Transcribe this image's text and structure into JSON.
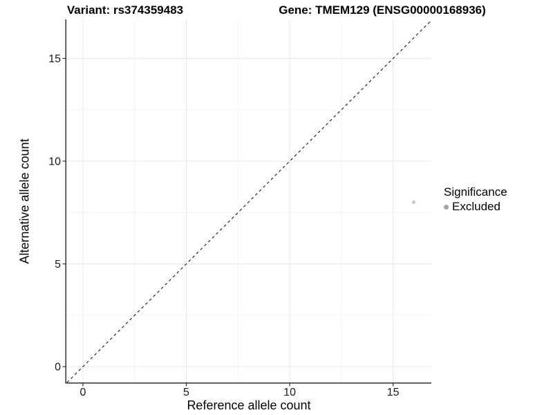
{
  "header": {
    "variant_title": "Variant: rs374359483",
    "gene_title": "Gene: TMEM129 (ENSG00000168936)"
  },
  "legend": {
    "title": "Significance",
    "items": [
      {
        "label": "Excluded",
        "key_color": "#a3a3a3"
      }
    ]
  },
  "colors": {
    "background": "#ffffff",
    "grid_major": "#e7e7e7",
    "grid_minor": "#f3f3f3",
    "axis_line": "#2f2f2f",
    "tick_text": "#1a1a1a",
    "identity_line": "#000000",
    "point": "#c6c6c6"
  },
  "chart_data": {
    "type": "scatter",
    "title_left": "Variant: rs374359483",
    "title_right": "Gene: TMEM129 (ENSG00000168936)",
    "xlabel": "Reference allele count",
    "ylabel": "Alternative allele count",
    "xlim": [
      -0.8,
      16.85
    ],
    "ylim": [
      -0.77,
      16.9
    ],
    "x_ticks": [
      0,
      5,
      10,
      15
    ],
    "y_ticks": [
      0,
      5,
      10,
      15
    ],
    "x_minor_ticks": [
      2.5,
      7.5,
      12.5
    ],
    "y_minor_ticks": [
      2.5,
      7.5,
      12.5
    ],
    "grid": true,
    "legend_position": "right",
    "legend_title": "Significance",
    "identity_line": {
      "type": "y=x",
      "style": "dashed",
      "color": "#000000"
    },
    "series": [
      {
        "name": "Excluded",
        "color": "#c6c6c6",
        "points": [
          {
            "x": 16,
            "y": 8
          }
        ]
      }
    ]
  }
}
